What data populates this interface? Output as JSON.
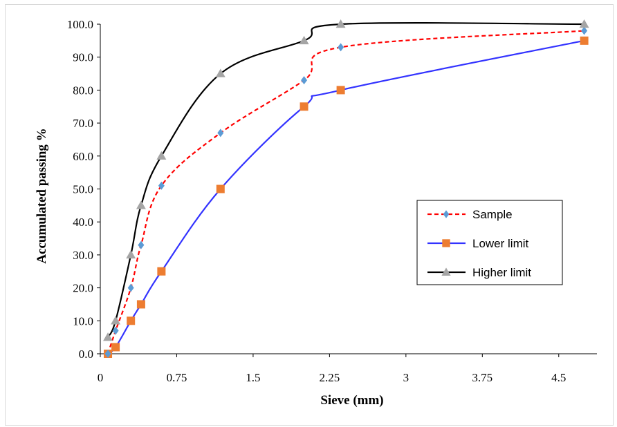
{
  "chart_data": {
    "type": "line",
    "title": "",
    "xlabel": "Sieve (mm)",
    "ylabel": "Accumulated passing %",
    "xlim": [
      0,
      4.875
    ],
    "ylim": [
      0,
      100
    ],
    "x_ticks": [
      0,
      0.75,
      1.5,
      2.25,
      3,
      3.75,
      4.5
    ],
    "x_tick_labels": [
      "0",
      "0.75",
      "1.5",
      "2.25",
      "3",
      "3.75",
      "4.5"
    ],
    "y_ticks": [
      0,
      10,
      20,
      30,
      40,
      50,
      60,
      70,
      80,
      90,
      100
    ],
    "y_tick_labels": [
      "0.0",
      "10.0",
      "20.0",
      "30.0",
      "40.0",
      "50.0",
      "60.0",
      "70.0",
      "80.0",
      "90.0",
      "100.0"
    ],
    "grid": false,
    "legend_position": "right",
    "series": [
      {
        "name": "Sample",
        "color": "#ff0000",
        "line_style": "dashed",
        "marker": "diamond",
        "marker_color": "#5b9bd5",
        "x": [
          0.075,
          0.15,
          0.3,
          0.4,
          0.6,
          1.18,
          2.0,
          2.36,
          4.75
        ],
        "y": [
          0,
          7,
          20,
          33,
          51,
          67,
          83,
          93,
          98
        ]
      },
      {
        "name": "Lower limit",
        "color": "#3333ff",
        "line_style": "solid",
        "marker": "square",
        "marker_color": "#ed7d31",
        "x": [
          0.075,
          0.15,
          0.3,
          0.4,
          0.6,
          1.18,
          2.0,
          2.36,
          4.75
        ],
        "y": [
          0,
          2,
          10,
          15,
          25,
          50,
          75,
          80,
          95
        ]
      },
      {
        "name": "Higher limit",
        "color": "#000000",
        "line_style": "solid",
        "marker": "triangle",
        "marker_color": "#a5a5a5",
        "x": [
          0.075,
          0.15,
          0.3,
          0.4,
          0.6,
          1.18,
          2.0,
          2.36,
          4.75
        ],
        "y": [
          5,
          10,
          30,
          45,
          60,
          85,
          95,
          100,
          100
        ]
      }
    ]
  }
}
